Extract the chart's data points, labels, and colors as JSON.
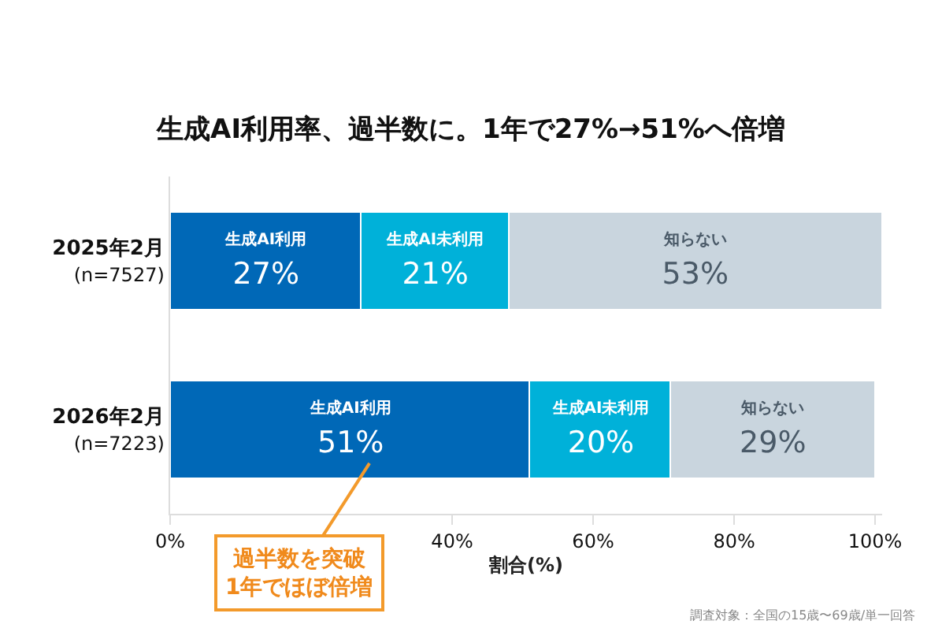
{
  "chart_data": {
    "type": "bar",
    "orientation": "horizontal",
    "stacked": true,
    "title": "生成AI利用率、過半数に。1年で27%→51%へ倍増",
    "xlabel": "割合(%)",
    "categories": [
      "2025年2月\n(n=7527)",
      "2026年2月\n(n=7223)"
    ],
    "series": [
      {
        "name": "生成AI利用",
        "color": "#0068b7",
        "values": [
          27,
          51
        ],
        "value_labels": [
          "27%",
          "51%"
        ]
      },
      {
        "name": "生成AI未利用",
        "color": "#00b1d9",
        "values": [
          21,
          20
        ],
        "value_labels": [
          "21%",
          "20%"
        ]
      },
      {
        "name": "知らない",
        "color": "#c9d5de",
        "values": [
          53,
          29
        ],
        "value_labels": [
          "53%",
          "29%"
        ]
      }
    ],
    "xlim": [
      0,
      101
    ],
    "xticks": [
      {
        "value": 0,
        "label": "0%"
      },
      {
        "value": 40,
        "label": "40%"
      },
      {
        "value": 60,
        "label": "60%"
      },
      {
        "value": 80,
        "label": "80%"
      },
      {
        "value": 100,
        "label": "100%"
      }
    ],
    "annotations": [
      "過半数を突破\n1年でほぼ倍増",
      "調査対象：全国の15歳〜69歳/単一回答"
    ],
    "legend": false
  }
}
